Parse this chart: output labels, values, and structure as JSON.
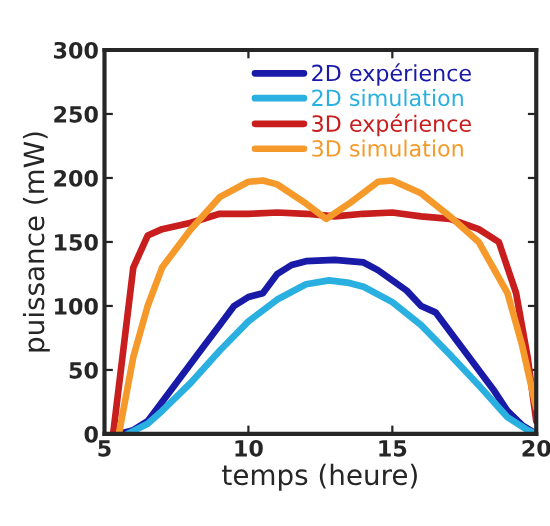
{
  "chart_data": {
    "type": "line",
    "xlabel": "temps (heure)",
    "ylabel": "puissance (mW)",
    "xlim": [
      5,
      20
    ],
    "ylim": [
      0,
      300
    ],
    "xticks": [
      5,
      10,
      15,
      20
    ],
    "yticks": [
      0,
      50,
      100,
      150,
      200,
      250,
      300
    ],
    "grid": false,
    "legend": "top",
    "marker": "none",
    "line_style": "solid",
    "series": [
      {
        "name": "2D expérience",
        "color": "#1a1aa8",
        "x": [
          5.5,
          6,
          6.5,
          7,
          7.5,
          8,
          8.5,
          9,
          9.5,
          10,
          10.5,
          11,
          11.5,
          12,
          13,
          14,
          14.5,
          15,
          15.5,
          16,
          16.5,
          17,
          17.5,
          18,
          18.5,
          19,
          19.5,
          20
        ],
        "values": [
          0,
          3,
          10,
          25,
          40,
          55,
          70,
          85,
          100,
          107,
          110,
          125,
          132,
          135,
          136,
          134,
          128,
          120,
          112,
          100,
          95,
          80,
          65,
          50,
          35,
          18,
          7,
          0
        ]
      },
      {
        "name": "2D simulation",
        "color": "#29b0e0",
        "x": [
          5.8,
          6.5,
          7,
          8,
          9,
          10,
          11,
          12,
          12.8,
          13.5,
          14,
          15,
          16,
          17,
          18,
          19,
          19.7,
          20
        ],
        "values": [
          0,
          8,
          18,
          40,
          65,
          88,
          105,
          117,
          120,
          118,
          115,
          103,
          85,
          62,
          38,
          13,
          3,
          0
        ]
      },
      {
        "name": "3D expérience",
        "color": "#c81e1e",
        "x": [
          5.3,
          6,
          6.5,
          7,
          8,
          9,
          10,
          11,
          12,
          13,
          14,
          15,
          16,
          17,
          18,
          18.7,
          19.3,
          19.7,
          20
        ],
        "values": [
          0,
          130,
          155,
          160,
          165,
          172,
          172,
          173,
          172,
          170,
          172,
          173,
          170,
          168,
          160,
          150,
          110,
          60,
          10
        ]
      },
      {
        "name": "3D simulation",
        "color": "#f59a2a",
        "x": [
          5.5,
          6,
          6.5,
          7,
          8,
          9,
          10,
          10.5,
          11,
          12,
          12.7,
          13.5,
          14.5,
          15,
          16,
          17,
          18,
          19,
          19.5,
          20
        ],
        "values": [
          0,
          60,
          100,
          130,
          160,
          185,
          197,
          198,
          195,
          180,
          168,
          180,
          197,
          198,
          188,
          170,
          150,
          110,
          70,
          20
        ]
      }
    ]
  }
}
